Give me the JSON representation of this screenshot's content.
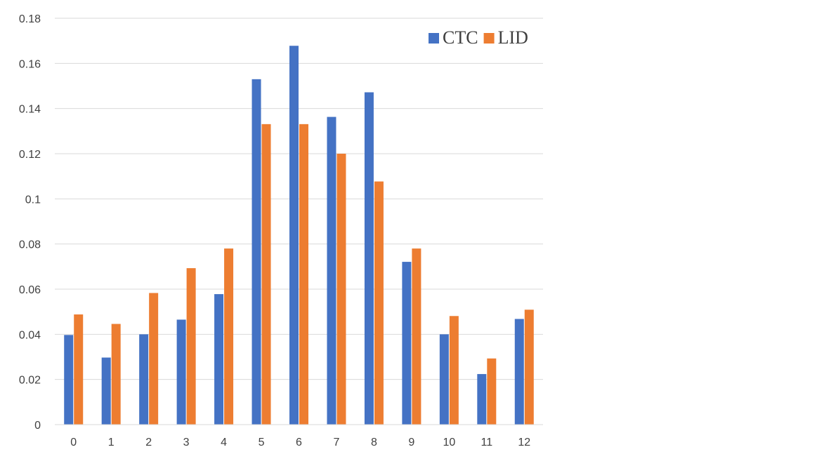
{
  "chart_data": {
    "type": "bar",
    "title": "",
    "xlabel": "",
    "ylabel": "",
    "categories": [
      "0",
      "1",
      "2",
      "3",
      "4",
      "5",
      "6",
      "7",
      "8",
      "9",
      "10",
      "11",
      "12"
    ],
    "series": [
      {
        "name": "CTC",
        "color": "#4472c4",
        "values": [
          0.0397,
          0.0297,
          0.04,
          0.0465,
          0.0578,
          0.153,
          0.1678,
          0.1363,
          0.1472,
          0.0721,
          0.04,
          0.0224,
          0.0468
        ]
      },
      {
        "name": "LID",
        "color": "#ed7d31",
        "values": [
          0.0488,
          0.0446,
          0.0583,
          0.0693,
          0.078,
          0.1331,
          0.1331,
          0.12,
          0.1077,
          0.078,
          0.0481,
          0.0293,
          0.0509
        ]
      }
    ],
    "ylim": [
      0,
      0.18
    ],
    "yticks": [
      "0",
      "0.02",
      "0.04",
      "0.06",
      "0.08",
      "0.1",
      "0.12",
      "0.14",
      "0.16",
      "0.18"
    ],
    "grid": true,
    "legend_position": "top-right"
  }
}
